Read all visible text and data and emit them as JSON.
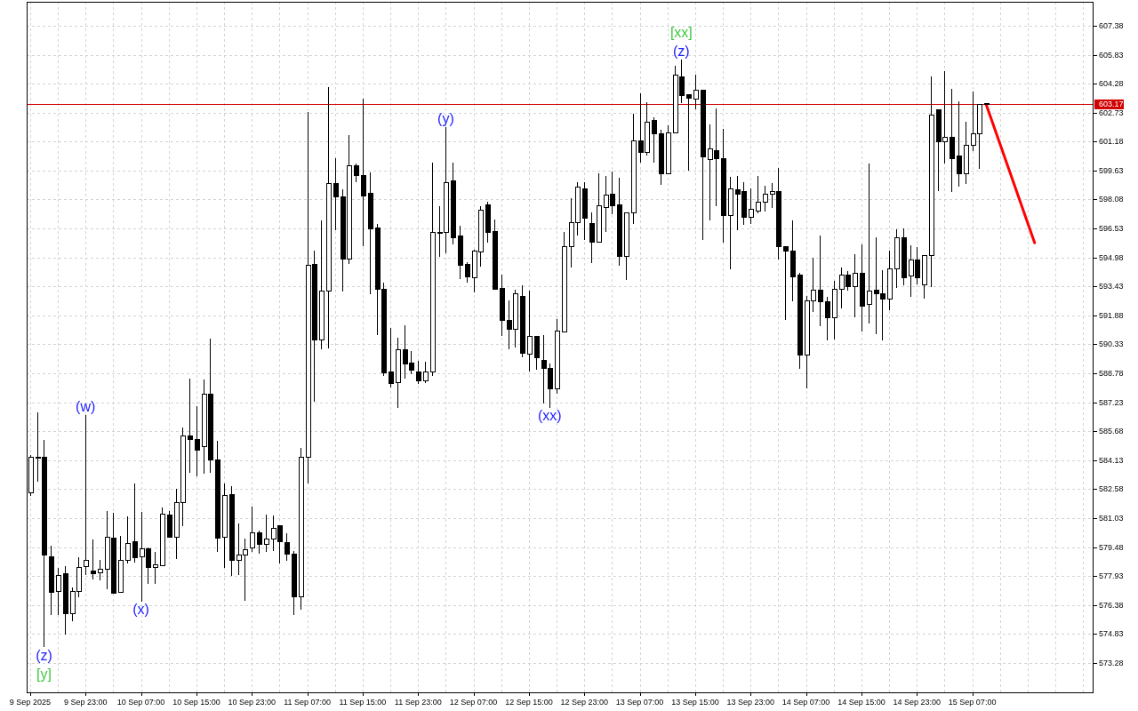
{
  "chart_data": {
    "type": "candlestick",
    "xlim": [
      "2025-09-09T14:30",
      "2025-09-16T00:30"
    ],
    "ylim": [
      571.71,
      608.66
    ],
    "xticks": [
      {
        "value": "2025-09-09T15:00",
        "label": "9 Sep 2025"
      },
      {
        "value": "2025-09-09T19:00",
        "label": null
      },
      {
        "value": "2025-09-09T23:00",
        "label": "9 Sep 23:00"
      },
      {
        "value": "2025-09-10T03:00",
        "label": null
      },
      {
        "value": "2025-09-10T07:00",
        "label": "10 Sep 07:00"
      },
      {
        "value": "2025-09-10T11:00",
        "label": null
      },
      {
        "value": "2025-09-10T15:00",
        "label": "10 Sep 15:00"
      },
      {
        "value": "2025-09-10T19:00",
        "label": null
      },
      {
        "value": "2025-09-10T23:00",
        "label": "10 Sep 23:00"
      },
      {
        "value": "2025-09-11T03:00",
        "label": null
      },
      {
        "value": "2025-09-11T07:00",
        "label": "11 Sep 07:00"
      },
      {
        "value": "2025-09-11T11:00",
        "label": null
      },
      {
        "value": "2025-09-11T15:00",
        "label": "11 Sep 15:00"
      },
      {
        "value": "2025-09-11T19:00",
        "label": null
      },
      {
        "value": "2025-09-11T23:00",
        "label": "11 Sep 23:00"
      },
      {
        "value": "2025-09-12T03:00",
        "label": null
      },
      {
        "value": "2025-09-12T07:00",
        "label": "12 Sep 07:00"
      },
      {
        "value": "2025-09-12T11:00",
        "label": null
      },
      {
        "value": "2025-09-12T15:00",
        "label": "12 Sep 15:00"
      },
      {
        "value": "2025-09-12T19:00",
        "label": null
      },
      {
        "value": "2025-09-12T23:00",
        "label": "12 Sep 23:00"
      },
      {
        "value": "2025-09-13T03:00",
        "label": null
      },
      {
        "value": "2025-09-13T07:00",
        "label": "13 Sep 07:00"
      },
      {
        "value": "2025-09-13T11:00",
        "label": null
      },
      {
        "value": "2025-09-13T15:00",
        "label": "13 Sep 15:00"
      },
      {
        "value": "2025-09-13T19:00",
        "label": null
      },
      {
        "value": "2025-09-13T23:00",
        "label": "13 Sep 23:00"
      },
      {
        "value": "2025-09-14T03:00",
        "label": null
      },
      {
        "value": "2025-09-14T07:00",
        "label": "14 Sep 07:00"
      },
      {
        "value": "2025-09-14T11:00",
        "label": null
      },
      {
        "value": "2025-09-14T15:00",
        "label": "14 Sep 15:00"
      },
      {
        "value": "2025-09-14T19:00",
        "label": null
      },
      {
        "value": "2025-09-14T23:00",
        "label": "14 Sep 23:00"
      },
      {
        "value": "2025-09-15T03:00",
        "label": null
      },
      {
        "value": "2025-09-15T07:00",
        "label": "15 Sep 07:00"
      },
      {
        "value": "2025-09-15T11:00",
        "label": null
      },
      {
        "value": "2025-09-15T15:00",
        "label": null
      },
      {
        "value": "2025-09-15T19:00",
        "label": null
      },
      {
        "value": "2025-09-15T23:00",
        "label": null
      }
    ],
    "yticks": [
      607.38,
      605.83,
      604.28,
      602.73,
      601.18,
      599.63,
      598.08,
      596.53,
      594.98,
      593.43,
      591.88,
      590.33,
      588.78,
      587.23,
      585.68,
      584.13,
      582.58,
      581.03,
      579.48,
      577.93,
      576.38,
      574.83,
      573.28
    ],
    "grid": true,
    "series": [
      {
        "color": "#000000",
        "x": [
          "2025-09-09T15:00",
          "2025-09-09T16:00",
          "2025-09-09T17:00",
          "2025-09-09T18:00",
          "2025-09-09T19:00",
          "2025-09-09T20:00",
          "2025-09-09T21:00",
          "2025-09-09T22:00",
          "2025-09-09T23:00",
          "2025-09-10T00:00",
          "2025-09-10T01:00",
          "2025-09-10T02:00",
          "2025-09-10T03:00",
          "2025-09-10T04:00",
          "2025-09-10T05:00",
          "2025-09-10T06:00",
          "2025-09-10T07:00",
          "2025-09-10T08:00",
          "2025-09-10T09:00",
          "2025-09-10T10:00",
          "2025-09-10T11:00",
          "2025-09-10T12:00",
          "2025-09-10T13:00",
          "2025-09-10T14:00",
          "2025-09-10T15:00",
          "2025-09-10T16:00",
          "2025-09-10T17:00",
          "2025-09-10T18:00",
          "2025-09-10T19:00",
          "2025-09-10T20:00",
          "2025-09-10T21:00",
          "2025-09-10T22:00",
          "2025-09-10T23:00",
          "2025-09-11T00:00",
          "2025-09-11T01:00",
          "2025-09-11T02:00",
          "2025-09-11T03:00",
          "2025-09-11T04:00",
          "2025-09-11T05:00",
          "2025-09-11T06:00",
          "2025-09-11T07:00",
          "2025-09-11T08:00",
          "2025-09-11T09:00",
          "2025-09-11T10:00",
          "2025-09-11T11:00",
          "2025-09-11T12:00",
          "2025-09-11T13:00",
          "2025-09-11T14:00",
          "2025-09-11T15:00",
          "2025-09-11T16:00",
          "2025-09-11T17:00",
          "2025-09-11T18:00",
          "2025-09-11T19:00",
          "2025-09-11T20:00",
          "2025-09-11T21:00",
          "2025-09-11T22:00",
          "2025-09-11T23:00",
          "2025-09-12T00:00",
          "2025-09-12T01:00",
          "2025-09-12T02:00",
          "2025-09-12T03:00",
          "2025-09-12T04:00",
          "2025-09-12T05:00",
          "2025-09-12T06:00",
          "2025-09-12T07:00",
          "2025-09-12T08:00",
          "2025-09-12T09:00",
          "2025-09-12T10:00",
          "2025-09-12T11:00",
          "2025-09-12T12:00",
          "2025-09-12T13:00",
          "2025-09-12T14:00",
          "2025-09-12T15:00",
          "2025-09-12T16:00",
          "2025-09-12T17:00",
          "2025-09-12T18:00",
          "2025-09-12T19:00",
          "2025-09-12T20:00",
          "2025-09-12T21:00",
          "2025-09-12T22:00",
          "2025-09-12T23:00",
          "2025-09-13T00:00",
          "2025-09-13T01:00",
          "2025-09-13T02:00",
          "2025-09-13T03:00",
          "2025-09-13T04:00",
          "2025-09-13T05:00",
          "2025-09-13T06:00",
          "2025-09-13T07:00",
          "2025-09-13T08:00",
          "2025-09-13T09:00",
          "2025-09-13T10:00",
          "2025-09-13T11:00",
          "2025-09-13T12:00",
          "2025-09-13T13:00",
          "2025-09-13T14:00",
          "2025-09-13T15:00",
          "2025-09-13T16:00",
          "2025-09-13T17:00",
          "2025-09-13T18:00",
          "2025-09-13T19:00",
          "2025-09-13T20:00",
          "2025-09-13T21:00",
          "2025-09-13T22:00",
          "2025-09-13T23:00",
          "2025-09-14T00:00",
          "2025-09-14T01:00",
          "2025-09-14T02:00",
          "2025-09-14T03:00",
          "2025-09-14T04:00",
          "2025-09-14T05:00",
          "2025-09-14T06:00",
          "2025-09-14T07:00",
          "2025-09-14T08:00",
          "2025-09-14T09:00",
          "2025-09-14T10:00",
          "2025-09-14T11:00",
          "2025-09-14T12:00",
          "2025-09-14T13:00",
          "2025-09-14T14:00",
          "2025-09-14T15:00",
          "2025-09-14T16:00",
          "2025-09-14T17:00",
          "2025-09-14T18:00",
          "2025-09-14T19:00",
          "2025-09-14T20:00",
          "2025-09-14T21:00",
          "2025-09-14T22:00",
          "2025-09-14T23:00",
          "2025-09-15T00:00",
          "2025-09-15T01:00",
          "2025-09-15T02:00",
          "2025-09-15T03:00",
          "2025-09-15T04:00",
          "2025-09-15T05:00",
          "2025-09-15T06:00",
          "2025-09-15T07:00",
          "2025-09-15T08:00",
          "2025-09-15T09:00"
        ],
        "ohlc": [
          [
            582.41,
            584.4,
            582.2,
            584.3
          ],
          [
            584.32,
            586.69,
            583.0,
            584.28
          ],
          [
            584.3,
            585.22,
            574.12,
            579.07
          ],
          [
            578.97,
            579.54,
            575.86,
            577.07
          ],
          [
            577.12,
            578.37,
            575.86,
            577.97
          ],
          [
            578.07,
            578.46,
            574.79,
            575.93
          ],
          [
            575.93,
            577.32,
            575.5,
            577.12
          ],
          [
            577.12,
            578.92,
            576.81,
            578.4
          ],
          [
            578.45,
            586.56,
            577.97,
            578.78
          ],
          [
            578.21,
            579.89,
            577.77,
            578.07
          ],
          [
            578.11,
            578.78,
            577.69,
            578.3
          ],
          [
            578.3,
            581.41,
            577.21,
            580.02
          ],
          [
            579.97,
            581.32,
            577.02,
            577.05
          ],
          [
            577.07,
            580.08,
            577.05,
            578.78
          ],
          [
            578.78,
            581.13,
            578.59,
            579.68
          ],
          [
            579.78,
            582.89,
            578.64,
            578.95
          ],
          [
            578.97,
            581.35,
            576.58,
            579.4
          ],
          [
            579.4,
            579.45,
            577.53,
            578.4
          ],
          [
            578.4,
            579.22,
            577.53,
            578.55
          ],
          [
            578.53,
            581.6,
            578.5,
            581.25
          ],
          [
            581.2,
            581.41,
            579.99,
            580.05
          ],
          [
            580.05,
            582.6,
            578.86,
            581.87
          ],
          [
            581.87,
            585.88,
            580.59,
            585.44
          ],
          [
            585.44,
            588.5,
            583.47,
            585.28
          ],
          [
            585.27,
            587.01,
            583.27,
            584.7
          ],
          [
            584.86,
            588.46,
            583.42,
            587.7
          ],
          [
            587.7,
            590.62,
            583.46,
            584.16
          ],
          [
            584.16,
            585.18,
            579.23,
            579.99
          ],
          [
            580.05,
            582.9,
            578.36,
            582.27
          ],
          [
            582.33,
            582.75,
            577.96,
            578.79
          ],
          [
            578.79,
            580.75,
            577.98,
            579.07
          ],
          [
            579.07,
            579.94,
            576.6,
            579.35
          ],
          [
            579.44,
            581.66,
            579.2,
            580.27
          ],
          [
            580.27,
            580.36,
            579.11,
            579.66
          ],
          [
            579.66,
            581.24,
            579.24,
            579.92
          ],
          [
            579.92,
            581.15,
            579.26,
            580.51
          ],
          [
            580.64,
            580.64,
            578.61,
            579.81
          ],
          [
            579.75,
            580.23,
            578.74,
            579.14
          ],
          [
            579.14,
            579.29,
            575.87,
            576.85
          ],
          [
            576.85,
            584.79,
            576.14,
            584.31
          ],
          [
            584.31,
            602.75,
            582.87,
            594.59
          ],
          [
            594.65,
            595.33,
            587.26,
            590.57
          ],
          [
            590.57,
            596.94,
            590.08,
            593.21
          ],
          [
            593.21,
            604.08,
            590.11,
            598.94
          ],
          [
            598.96,
            600.27,
            596.42,
            598.23
          ],
          [
            598.23,
            598.64,
            593.18,
            594.94
          ],
          [
            594.93,
            601.53,
            594.65,
            599.89
          ],
          [
            599.89,
            600.0,
            599.01,
            599.37
          ],
          [
            599.41,
            603.48,
            595.6,
            598.31
          ],
          [
            598.42,
            599.51,
            593.03,
            596.52
          ],
          [
            596.57,
            596.76,
            590.81,
            593.31
          ],
          [
            593.28,
            593.61,
            588.62,
            588.84
          ],
          [
            588.9,
            591.21,
            588.03,
            588.27
          ],
          [
            588.33,
            590.69,
            586.91,
            590.05
          ],
          [
            590.05,
            591.35,
            588.52,
            589.32
          ],
          [
            589.33,
            589.99,
            588.74,
            588.95
          ],
          [
            588.9,
            589.46,
            588.22,
            588.41
          ],
          [
            588.38,
            589.41,
            588.27,
            588.9
          ],
          [
            588.9,
            600.04,
            588.65,
            596.33
          ],
          [
            596.35,
            597.71,
            595.01,
            596.3
          ],
          [
            596.36,
            601.97,
            595.2,
            598.99
          ],
          [
            599.1,
            600.06,
            595.67,
            596.07
          ],
          [
            596.15,
            596.66,
            593.82,
            594.6
          ],
          [
            594.63,
            594.73,
            593.63,
            593.98
          ],
          [
            593.93,
            595.39,
            593.12,
            595.34
          ],
          [
            595.31,
            597.71,
            594.49,
            597.53
          ],
          [
            597.82,
            597.98,
            595.79,
            596.36
          ],
          [
            596.39,
            597.02,
            593.27,
            593.3
          ],
          [
            593.35,
            594.06,
            590.79,
            591.65
          ],
          [
            591.64,
            592.66,
            590.05,
            591.16
          ],
          [
            591.14,
            593.25,
            590.18,
            593.05
          ],
          [
            592.91,
            593.48,
            589.62,
            589.86
          ],
          [
            589.81,
            593.2,
            588.89,
            590.76
          ],
          [
            590.76,
            590.8,
            588.98,
            589.65
          ],
          [
            589.48,
            590.81,
            587.16,
            589.05
          ],
          [
            589.05,
            589.29,
            586.94,
            587.99
          ],
          [
            587.96,
            591.67,
            587.67,
            591.05
          ],
          [
            591.03,
            596.34,
            591.0,
            595.6
          ],
          [
            595.6,
            598.15,
            594.46,
            596.85
          ],
          [
            596.85,
            599.0,
            596.17,
            598.75
          ],
          [
            598.65,
            599.0,
            595.93,
            597.12
          ],
          [
            596.81,
            597.37,
            594.69,
            595.84
          ],
          [
            595.84,
            599.48,
            595.81,
            597.75
          ],
          [
            597.66,
            599.34,
            596.36,
            598.32
          ],
          [
            598.41,
            599.56,
            597.29,
            597.78
          ],
          [
            597.8,
            599.24,
            594.54,
            595.07
          ],
          [
            595.07,
            597.37,
            593.77,
            597.37
          ],
          [
            597.37,
            602.67,
            596.76,
            601.22
          ],
          [
            601.22,
            603.76,
            600.07,
            600.6
          ],
          [
            600.6,
            603.28,
            600.44,
            602.22
          ],
          [
            602.32,
            602.48,
            600.07,
            601.61
          ],
          [
            601.63,
            601.8,
            598.84,
            599.46
          ],
          [
            599.46,
            602.04,
            599.46,
            601.69
          ],
          [
            601.69,
            605.23,
            601.6,
            604.74
          ],
          [
            604.66,
            605.58,
            603.24,
            603.68
          ],
          [
            603.7,
            603.7,
            599.64,
            603.51
          ],
          [
            603.49,
            604.76,
            602.92,
            603.93
          ],
          [
            603.93,
            603.93,
            595.91,
            600.4
          ],
          [
            600.22,
            602.1,
            596.98,
            600.79
          ],
          [
            600.7,
            602.95,
            597.74,
            600.27
          ],
          [
            600.27,
            601.85,
            595.76,
            597.26
          ],
          [
            597.26,
            599.27,
            594.33,
            598.66
          ],
          [
            598.61,
            599.33,
            596.42,
            598.4
          ],
          [
            598.53,
            599.02,
            596.7,
            597.13
          ],
          [
            597.13,
            598.68,
            596.78,
            597.56
          ],
          [
            597.47,
            599.33,
            597.34,
            597.94
          ],
          [
            597.94,
            598.82,
            597.46,
            598.37
          ],
          [
            598.37,
            598.98,
            597.65,
            598.51
          ],
          [
            598.53,
            599.77,
            594.85,
            595.6
          ],
          [
            595.57,
            595.57,
            591.63,
            595.33
          ],
          [
            595.33,
            596.97,
            592.65,
            593.98
          ],
          [
            594.06,
            594.17,
            589.02,
            589.8
          ],
          [
            589.8,
            592.91,
            587.99,
            592.67
          ],
          [
            592.67,
            594.96,
            592.06,
            593.26
          ],
          [
            593.26,
            596.13,
            591.3,
            592.62
          ],
          [
            592.62,
            592.87,
            590.55,
            591.76
          ],
          [
            591.76,
            593.73,
            590.61,
            593.29
          ],
          [
            593.28,
            594.45,
            592.27,
            594.04
          ],
          [
            594.04,
            594.25,
            593.21,
            593.42
          ],
          [
            593.42,
            595.15,
            591.77,
            594.17
          ],
          [
            594.17,
            595.66,
            591.03,
            592.41
          ],
          [
            592.47,
            600.0,
            591.44,
            593.22
          ],
          [
            593.23,
            596.04,
            590.89,
            593.06
          ],
          [
            593.04,
            594.3,
            590.55,
            592.79
          ],
          [
            592.79,
            595.35,
            592.17,
            594.38
          ],
          [
            594.38,
            596.48,
            593.33,
            596.07
          ],
          [
            596.04,
            596.55,
            593.5,
            593.94
          ],
          [
            594.02,
            595.63,
            592.85,
            594.87
          ],
          [
            594.87,
            595.55,
            593.53,
            593.92
          ],
          [
            593.53,
            595.09,
            592.76,
            595.09
          ],
          [
            595.09,
            604.66,
            593.38,
            602.64
          ],
          [
            602.89,
            602.89,
            598.55,
            601.18
          ],
          [
            601.18,
            604.93,
            600.02,
            601.42
          ],
          [
            601.42,
            603.99,
            598.5,
            600.31
          ],
          [
            600.42,
            603.34,
            598.79,
            599.47
          ],
          [
            599.47,
            602.23,
            598.93,
            600.98
          ],
          [
            600.99,
            603.86,
            600.68,
            601.6
          ],
          [
            601.6,
            603.21,
            599.74,
            603.21
          ],
          [
            603.22,
            603.25,
            603.15,
            603.17
          ]
        ]
      },
      {
        "type": "line",
        "color": "#ff0000",
        "x": [
          "2025-09-15T09:00",
          "2025-09-15T16:00"
        ],
        "values": [
          603.17,
          595.76
        ]
      }
    ],
    "ref_lines": [
      {
        "axis": "y",
        "value": 603.17,
        "label": "603.17",
        "color": "#d00000"
      }
    ],
    "annotations": [
      {
        "text": "(z)",
        "x": "2025-09-09T17:00",
        "y": 574.12
      },
      {
        "text": "[y]",
        "x": "2025-09-09T17:00",
        "y": 574.12
      },
      {
        "text": "(w)",
        "x": "2025-09-09T23:00",
        "y": 586.56
      },
      {
        "text": "(x)",
        "x": "2025-09-10T07:00",
        "y": 576.58
      },
      {
        "text": "(y)",
        "x": "2025-09-12T03:00",
        "y": 601.97
      },
      {
        "text": "(xx)",
        "x": "2025-09-12T18:00",
        "y": 586.94
      },
      {
        "text": "(z)",
        "x": "2025-09-13T13:00",
        "y": 605.58
      },
      {
        "text": "[xx]",
        "x": "2025-09-13T13:00",
        "y": 605.58
      }
    ]
  }
}
